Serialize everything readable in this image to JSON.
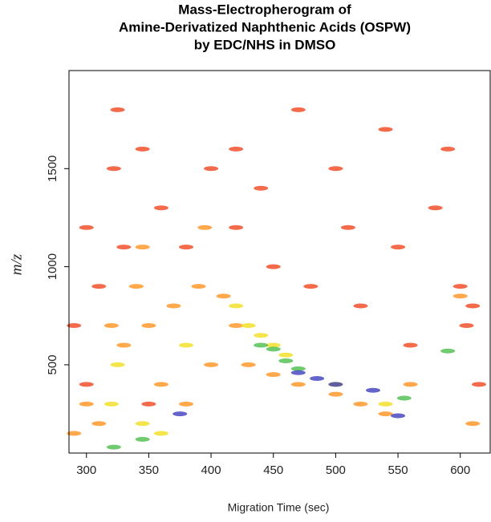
{
  "chart_data": {
    "type": "scatter",
    "title": [
      "Mass-Electropherogram of",
      "Amine-Derivatized Naphthenic Acids (OSPW)",
      "by EDC/NHS in DMSO"
    ],
    "x_label": "Migration Time (sec)",
    "y_label": "m/z",
    "xlim": [
      286,
      624
    ],
    "ylim": [
      50,
      2000
    ],
    "xticks": [
      300,
      350,
      400,
      450,
      500,
      550,
      600
    ],
    "yticks": [
      500,
      1000,
      1500
    ],
    "series": [
      {
        "color": "#f03a10",
        "x": [
          300,
          310,
          325,
          322,
          345,
          360,
          380,
          400,
          420,
          450,
          480,
          500,
          520,
          540,
          560,
          580,
          600,
          610,
          615,
          300,
          350,
          290,
          470,
          550,
          420,
          590,
          330,
          510,
          440,
          605
        ],
        "values": [
          1200,
          900,
          1800,
          1500,
          1600,
          1300,
          1100,
          1500,
          1200,
          1000,
          900,
          1500,
          800,
          1700,
          600,
          1300,
          900,
          800,
          400,
          400,
          300,
          700,
          1800,
          1100,
          1600,
          1600,
          1100,
          1200,
          1400,
          700
        ]
      },
      {
        "color": "#ff8c10",
        "x": [
          320,
          340,
          350,
          370,
          390,
          410,
          420,
          300,
          310,
          360,
          380,
          400,
          430,
          450,
          470,
          500,
          520,
          540,
          330,
          345,
          395,
          600,
          560,
          290,
          610
        ],
        "values": [
          700,
          900,
          700,
          800,
          900,
          850,
          700,
          300,
          200,
          400,
          300,
          500,
          500,
          450,
          400,
          350,
          300,
          250,
          600,
          1100,
          1200,
          850,
          400,
          150,
          200
        ]
      },
      {
        "color": "#f0dc10",
        "x": [
          420,
          430,
          440,
          450,
          460,
          325,
          320,
          345,
          360,
          500,
          540,
          380
        ],
        "values": [
          800,
          700,
          650,
          600,
          550,
          500,
          300,
          200,
          150,
          400,
          300,
          600
        ]
      },
      {
        "color": "#40b840",
        "x": [
          440,
          450,
          460,
          470,
          322,
          555,
          590,
          345
        ],
        "values": [
          600,
          580,
          520,
          480,
          80,
          330,
          570,
          120
        ]
      },
      {
        "color": "#3030b8",
        "x": [
          470,
          485,
          500,
          530,
          375,
          550
        ],
        "values": [
          460,
          430,
          400,
          370,
          250,
          240
        ]
      }
    ]
  }
}
